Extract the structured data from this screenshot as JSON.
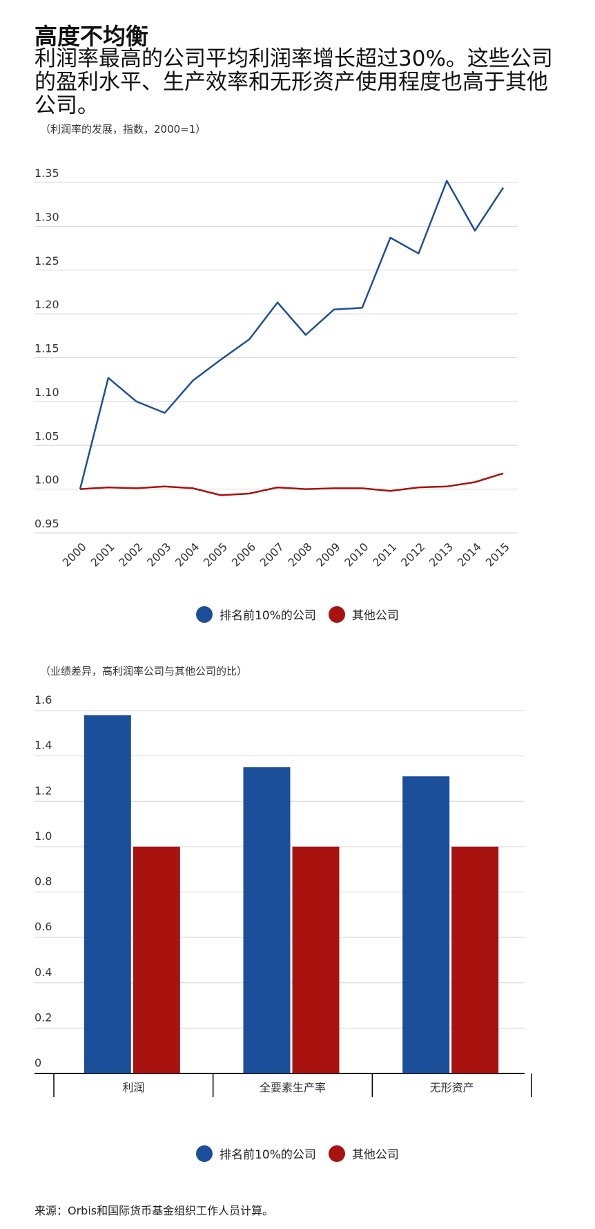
{
  "title": "高度不均衡",
  "subtitle": "利润率最高的公司平均利润率增长超过30%。这些公司的盈利水平、生产效率和无形资产使用程度也高于其他公司。",
  "source": "来源：Orbis和国际货币基金组织工作人员计算。",
  "colors": {
    "top10": "#1c4f99",
    "others": "#a8120f"
  },
  "chart_data": [
    {
      "type": "line",
      "note": "（利润率的发展，指数，2000=1）",
      "x": [
        "2000",
        "2001",
        "2002",
        "2003",
        "2004",
        "2005",
        "2006",
        "2007",
        "2008",
        "2009",
        "2010",
        "2011",
        "2012",
        "2013",
        "2014",
        "2015"
      ],
      "series": [
        {
          "name": "排名前10%的公司",
          "values": [
            1.0,
            1.127,
            1.1,
            1.087,
            1.124,
            1.148,
            1.171,
            1.213,
            1.176,
            1.205,
            1.207,
            1.287,
            1.269,
            1.352,
            1.295,
            1.344
          ]
        },
        {
          "name": "其他公司",
          "values": [
            1.0,
            1.002,
            1.001,
            1.003,
            1.001,
            0.993,
            0.995,
            1.002,
            1.0,
            1.001,
            1.001,
            0.998,
            1.002,
            1.003,
            1.008,
            1.018
          ]
        }
      ],
      "ylim": [
        0.95,
        1.35
      ],
      "yticks": [
        "0.95",
        "1.00",
        "1.05",
        "1.10",
        "1.15",
        "1.20",
        "1.25",
        "1.30",
        "1.35"
      ],
      "grid": true,
      "legend": "bottom-center"
    },
    {
      "type": "bar",
      "note": "（业绩差异，高利润率公司与其他公司的比）",
      "categories": [
        "利润",
        "全要素生产率",
        "无形资产"
      ],
      "series": [
        {
          "name": "排名前10%的公司",
          "values": [
            1.58,
            1.35,
            1.31
          ]
        },
        {
          "name": "其他公司",
          "values": [
            1.0,
            1.0,
            1.0
          ]
        }
      ],
      "ylim": [
        0,
        1.6
      ],
      "yticks": [
        "0",
        "0.2",
        "0.4",
        "0.6",
        "0.8",
        "1.0",
        "1.2",
        "1.4",
        "1.6"
      ],
      "grid": true,
      "legend": "bottom-center"
    }
  ]
}
